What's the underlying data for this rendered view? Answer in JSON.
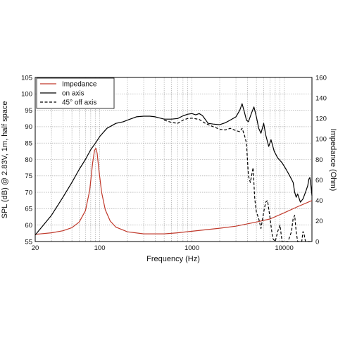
{
  "chart_data": {
    "type": "line",
    "xlabel": "Frequency (Hz)",
    "ylabel": "SPL (dB) @ 2.83V, 1m, half space",
    "y2label": "Impedance (Ohm)",
    "x_scale": "log",
    "xlim": [
      20,
      20000
    ],
    "ylim": [
      55,
      105
    ],
    "y2lim": [
      0,
      160
    ],
    "grid": true,
    "legend_position": "top-left",
    "x_tick_labels": [
      {
        "value": 20,
        "label": "20"
      },
      {
        "value": 100,
        "label": "100"
      },
      {
        "value": 1000,
        "label": "1000"
      },
      {
        "value": 10000,
        "label": "10000"
      }
    ],
    "y_ticks": [
      55,
      60,
      65,
      70,
      75,
      80,
      85,
      90,
      95,
      100,
      105
    ],
    "y2_ticks": [
      0,
      20,
      40,
      60,
      80,
      100,
      120,
      140,
      160
    ],
    "series": [
      {
        "name": "Impedance",
        "axis": "right",
        "color": "#c0392b",
        "dash": "solid",
        "points": [
          [
            20,
            7
          ],
          [
            30,
            8.5
          ],
          [
            40,
            10.5
          ],
          [
            50,
            13.5
          ],
          [
            60,
            19
          ],
          [
            70,
            30
          ],
          [
            78,
            50
          ],
          [
            84,
            77
          ],
          [
            88,
            89
          ],
          [
            91,
            91
          ],
          [
            94,
            86
          ],
          [
            98,
            70
          ],
          [
            105,
            48
          ],
          [
            115,
            31
          ],
          [
            130,
            20
          ],
          [
            150,
            14
          ],
          [
            200,
            9.5
          ],
          [
            300,
            7.5
          ],
          [
            500,
            7.5
          ],
          [
            700,
            8.5
          ],
          [
            1000,
            10
          ],
          [
            2000,
            13
          ],
          [
            3000,
            15
          ],
          [
            5000,
            19
          ],
          [
            7000,
            22
          ],
          [
            10000,
            28
          ],
          [
            14000,
            34
          ],
          [
            20000,
            40
          ]
        ]
      },
      {
        "name": "on axis",
        "axis": "left",
        "color": "#000000",
        "dash": "solid",
        "points": [
          [
            20,
            57
          ],
          [
            30,
            63
          ],
          [
            40,
            68.5
          ],
          [
            50,
            73
          ],
          [
            60,
            77
          ],
          [
            70,
            80
          ],
          [
            80,
            83
          ],
          [
            90,
            85
          ],
          [
            100,
            87
          ],
          [
            120,
            89.5
          ],
          [
            150,
            91
          ],
          [
            180,
            91.5
          ],
          [
            200,
            92
          ],
          [
            250,
            93
          ],
          [
            300,
            93.2
          ],
          [
            350,
            93.2
          ],
          [
            400,
            93
          ],
          [
            500,
            92.3
          ],
          [
            600,
            92.3
          ],
          [
            700,
            92.5
          ],
          [
            800,
            93.3
          ],
          [
            900,
            93.8
          ],
          [
            1000,
            94
          ],
          [
            1100,
            93.6
          ],
          [
            1200,
            94
          ],
          [
            1300,
            93.4
          ],
          [
            1500,
            91
          ],
          [
            1700,
            90.8
          ],
          [
            2000,
            90.6
          ],
          [
            2300,
            91.2
          ],
          [
            2600,
            92
          ],
          [
            3000,
            93
          ],
          [
            3300,
            95
          ],
          [
            3500,
            97
          ],
          [
            3700,
            94.5
          ],
          [
            3900,
            92
          ],
          [
            4100,
            91.5
          ],
          [
            4400,
            94
          ],
          [
            4700,
            96
          ],
          [
            5000,
            93
          ],
          [
            5300,
            89.5
          ],
          [
            5600,
            88
          ],
          [
            6000,
            91
          ],
          [
            6300,
            87.5
          ],
          [
            6800,
            84
          ],
          [
            7200,
            86
          ],
          [
            7800,
            82.5
          ],
          [
            8500,
            80.5
          ],
          [
            9500,
            79
          ],
          [
            10500,
            77
          ],
          [
            11500,
            75
          ],
          [
            12500,
            73
          ],
          [
            13000,
            70
          ],
          [
            13500,
            68.5
          ],
          [
            14000,
            69.5
          ],
          [
            15000,
            67
          ],
          [
            16000,
            68
          ],
          [
            17000,
            70
          ],
          [
            18000,
            72
          ],
          [
            18500,
            74
          ],
          [
            19000,
            74.5
          ],
          [
            19500,
            72
          ],
          [
            20000,
            69
          ]
        ]
      },
      {
        "name": "45° off axis",
        "axis": "left",
        "color": "#000000",
        "dash": "dashed",
        "points": [
          [
            500,
            92
          ],
          [
            600,
            91.3
          ],
          [
            700,
            91
          ],
          [
            800,
            92
          ],
          [
            900,
            92.5
          ],
          [
            1000,
            92.6
          ],
          [
            1200,
            92.2
          ],
          [
            1400,
            91
          ],
          [
            1700,
            90
          ],
          [
            2000,
            89.2
          ],
          [
            2300,
            89
          ],
          [
            2600,
            89.5
          ],
          [
            3000,
            88.8
          ],
          [
            3300,
            88.5
          ],
          [
            3500,
            89.5
          ],
          [
            3700,
            87.5
          ],
          [
            3900,
            85
          ],
          [
            4100,
            75
          ],
          [
            4300,
            73
          ],
          [
            4600,
            77.5
          ],
          [
            4800,
            68
          ],
          [
            5000,
            64
          ],
          [
            5300,
            62
          ],
          [
            5600,
            59
          ],
          [
            6000,
            64
          ],
          [
            6300,
            67
          ],
          [
            6600,
            67.5
          ],
          [
            7000,
            62.5
          ],
          [
            7500,
            56
          ],
          [
            8000,
            55
          ],
          [
            8500,
            58
          ],
          [
            9000,
            60
          ],
          [
            9500,
            55
          ],
          [
            11000,
            55
          ],
          [
            12000,
            58
          ],
          [
            12500,
            62
          ],
          [
            13000,
            63
          ],
          [
            13500,
            58
          ],
          [
            14000,
            55
          ],
          [
            15500,
            55
          ],
          [
            16000,
            58
          ],
          [
            16500,
            57
          ],
          [
            17000,
            55
          ],
          [
            20000,
            55
          ]
        ]
      }
    ]
  }
}
